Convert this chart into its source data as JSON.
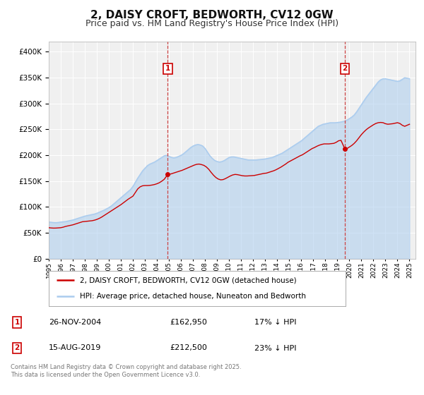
{
  "title": "2, DAISY CROFT, BEDWORTH, CV12 0GW",
  "subtitle": "Price paid vs. HM Land Registry's House Price Index (HPI)",
  "title_fontsize": 11,
  "subtitle_fontsize": 9,
  "bg_color": "#ffffff",
  "plot_bg_color": "#f0f0f0",
  "grid_color": "#ffffff",
  "hpi_color": "#aaccee",
  "price_color": "#cc0000",
  "vline_color": "#cc4444",
  "annotation_box_color": "#cc0000",
  "ylim": [
    0,
    420000
  ],
  "ytick_step": 50000,
  "legend_label_price": "2, DAISY CROFT, BEDWORTH, CV12 0GW (detached house)",
  "legend_label_hpi": "HPI: Average price, detached house, Nuneaton and Bedworth",
  "annotation1_date": "26-NOV-2004",
  "annotation1_price": "£162,950",
  "annotation1_pct": "17% ↓ HPI",
  "annotation2_date": "15-AUG-2019",
  "annotation2_price": "£212,500",
  "annotation2_pct": "23% ↓ HPI",
  "vline1_x": 2004.9,
  "vline2_x": 2019.62,
  "marker1_y": 162950,
  "marker2_y": 212500,
  "footnote": "Contains HM Land Registry data © Crown copyright and database right 2025.\nThis data is licensed under the Open Government Licence v3.0.",
  "hpi_data": [
    [
      1995.0,
      71000
    ],
    [
      1995.2,
      70500
    ],
    [
      1995.4,
      70000
    ],
    [
      1995.6,
      69800
    ],
    [
      1995.8,
      70200
    ],
    [
      1996.0,
      71000
    ],
    [
      1996.2,
      71500
    ],
    [
      1996.4,
      72000
    ],
    [
      1996.6,
      73000
    ],
    [
      1996.8,
      74000
    ],
    [
      1997.0,
      75000
    ],
    [
      1997.2,
      76500
    ],
    [
      1997.4,
      78000
    ],
    [
      1997.6,
      79500
    ],
    [
      1997.8,
      81000
    ],
    [
      1998.0,
      82500
    ],
    [
      1998.2,
      83500
    ],
    [
      1998.4,
      84500
    ],
    [
      1998.6,
      85500
    ],
    [
      1998.8,
      86500
    ],
    [
      1999.0,
      88000
    ],
    [
      1999.2,
      90000
    ],
    [
      1999.4,
      92000
    ],
    [
      1999.6,
      94000
    ],
    [
      1999.8,
      96500
    ],
    [
      2000.0,
      99000
    ],
    [
      2000.2,
      102000
    ],
    [
      2000.4,
      106000
    ],
    [
      2000.6,
      110000
    ],
    [
      2000.8,
      114000
    ],
    [
      2001.0,
      118000
    ],
    [
      2001.2,
      122000
    ],
    [
      2001.4,
      126000
    ],
    [
      2001.6,
      130000
    ],
    [
      2001.8,
      134000
    ],
    [
      2002.0,
      140000
    ],
    [
      2002.2,
      148000
    ],
    [
      2002.4,
      156000
    ],
    [
      2002.6,
      163000
    ],
    [
      2002.8,
      170000
    ],
    [
      2003.0,
      175000
    ],
    [
      2003.2,
      180000
    ],
    [
      2003.4,
      183000
    ],
    [
      2003.6,
      185000
    ],
    [
      2003.8,
      187000
    ],
    [
      2004.0,
      190000
    ],
    [
      2004.2,
      193000
    ],
    [
      2004.4,
      196000
    ],
    [
      2004.6,
      199000
    ],
    [
      2004.8,
      200000
    ],
    [
      2005.0,
      198000
    ],
    [
      2005.2,
      196000
    ],
    [
      2005.4,
      195000
    ],
    [
      2005.6,
      196000
    ],
    [
      2005.8,
      198000
    ],
    [
      2006.0,
      200000
    ],
    [
      2006.2,
      203000
    ],
    [
      2006.4,
      207000
    ],
    [
      2006.6,
      211000
    ],
    [
      2006.8,
      215000
    ],
    [
      2007.0,
      218000
    ],
    [
      2007.2,
      220000
    ],
    [
      2007.4,
      221000
    ],
    [
      2007.6,
      220000
    ],
    [
      2007.8,
      218000
    ],
    [
      2008.0,
      213000
    ],
    [
      2008.2,
      206000
    ],
    [
      2008.4,
      199000
    ],
    [
      2008.6,
      194000
    ],
    [
      2008.8,
      190000
    ],
    [
      2009.0,
      188000
    ],
    [
      2009.2,
      187000
    ],
    [
      2009.4,
      188000
    ],
    [
      2009.6,
      190000
    ],
    [
      2009.8,
      193000
    ],
    [
      2010.0,
      196000
    ],
    [
      2010.2,
      197000
    ],
    [
      2010.4,
      197000
    ],
    [
      2010.6,
      196000
    ],
    [
      2010.8,
      195000
    ],
    [
      2011.0,
      194000
    ],
    [
      2011.2,
      193000
    ],
    [
      2011.4,
      192000
    ],
    [
      2011.6,
      191000
    ],
    [
      2011.8,
      191000
    ],
    [
      2012.0,
      191000
    ],
    [
      2012.2,
      191000
    ],
    [
      2012.4,
      191500
    ],
    [
      2012.6,
      192000
    ],
    [
      2012.8,
      192500
    ],
    [
      2013.0,
      193000
    ],
    [
      2013.2,
      194000
    ],
    [
      2013.4,
      195000
    ],
    [
      2013.6,
      196000
    ],
    [
      2013.8,
      198000
    ],
    [
      2014.0,
      200000
    ],
    [
      2014.2,
      202000
    ],
    [
      2014.4,
      204000
    ],
    [
      2014.6,
      207000
    ],
    [
      2014.8,
      210000
    ],
    [
      2015.0,
      213000
    ],
    [
      2015.2,
      216000
    ],
    [
      2015.4,
      219000
    ],
    [
      2015.6,
      222000
    ],
    [
      2015.8,
      225000
    ],
    [
      2016.0,
      228000
    ],
    [
      2016.2,
      232000
    ],
    [
      2016.4,
      236000
    ],
    [
      2016.6,
      240000
    ],
    [
      2016.8,
      244000
    ],
    [
      2017.0,
      248000
    ],
    [
      2017.2,
      252000
    ],
    [
      2017.4,
      256000
    ],
    [
      2017.6,
      258000
    ],
    [
      2017.8,
      260000
    ],
    [
      2018.0,
      261000
    ],
    [
      2018.2,
      262000
    ],
    [
      2018.4,
      263000
    ],
    [
      2018.6,
      263000
    ],
    [
      2018.8,
      263000
    ],
    [
      2019.0,
      263500
    ],
    [
      2019.2,
      264000
    ],
    [
      2019.4,
      265000
    ],
    [
      2019.6,
      266000
    ],
    [
      2019.8,
      268000
    ],
    [
      2020.0,
      271000
    ],
    [
      2020.2,
      274000
    ],
    [
      2020.4,
      278000
    ],
    [
      2020.6,
      284000
    ],
    [
      2020.8,
      291000
    ],
    [
      2021.0,
      298000
    ],
    [
      2021.2,
      305000
    ],
    [
      2021.4,
      312000
    ],
    [
      2021.6,
      318000
    ],
    [
      2021.8,
      324000
    ],
    [
      2022.0,
      330000
    ],
    [
      2022.2,
      336000
    ],
    [
      2022.4,
      342000
    ],
    [
      2022.6,
      346000
    ],
    [
      2022.8,
      348000
    ],
    [
      2023.0,
      348000
    ],
    [
      2023.2,
      347000
    ],
    [
      2023.4,
      346000
    ],
    [
      2023.6,
      345000
    ],
    [
      2023.8,
      344000
    ],
    [
      2024.0,
      343000
    ],
    [
      2024.2,
      344000
    ],
    [
      2024.4,
      347000
    ],
    [
      2024.6,
      350000
    ],
    [
      2024.8,
      349000
    ],
    [
      2025.0,
      348000
    ]
  ],
  "price_data": [
    [
      1995.0,
      60000
    ],
    [
      1995.2,
      59500
    ],
    [
      1995.4,
      59200
    ],
    [
      1995.6,
      59300
    ],
    [
      1995.8,
      59600
    ],
    [
      1996.0,
      60000
    ],
    [
      1996.2,
      61000
    ],
    [
      1996.4,
      62500
    ],
    [
      1996.6,
      63500
    ],
    [
      1996.8,
      64500
    ],
    [
      1997.0,
      65500
    ],
    [
      1997.2,
      67000
    ],
    [
      1997.4,
      68500
    ],
    [
      1997.6,
      70000
    ],
    [
      1997.8,
      71500
    ],
    [
      1998.0,
      72000
    ],
    [
      1998.2,
      72500
    ],
    [
      1998.4,
      73000
    ],
    [
      1998.6,
      73500
    ],
    [
      1998.8,
      74500
    ],
    [
      1999.0,
      76000
    ],
    [
      1999.2,
      78000
    ],
    [
      1999.4,
      80500
    ],
    [
      1999.6,
      83500
    ],
    [
      1999.8,
      86500
    ],
    [
      2000.0,
      89500
    ],
    [
      2000.2,
      92500
    ],
    [
      2000.4,
      95500
    ],
    [
      2000.6,
      98500
    ],
    [
      2000.8,
      101500
    ],
    [
      2001.0,
      104500
    ],
    [
      2001.2,
      108000
    ],
    [
      2001.4,
      111500
    ],
    [
      2001.6,
      115000
    ],
    [
      2001.8,
      118000
    ],
    [
      2002.0,
      121000
    ],
    [
      2002.2,
      128000
    ],
    [
      2002.4,
      135000
    ],
    [
      2002.6,
      139000
    ],
    [
      2002.8,
      141000
    ],
    [
      2003.0,
      141500
    ],
    [
      2003.2,
      141500
    ],
    [
      2003.4,
      141800
    ],
    [
      2003.6,
      142500
    ],
    [
      2003.8,
      143500
    ],
    [
      2004.0,
      145000
    ],
    [
      2004.2,
      147000
    ],
    [
      2004.4,
      150000
    ],
    [
      2004.6,
      153500
    ],
    [
      2004.9,
      162950
    ],
    [
      2005.1,
      163500
    ],
    [
      2005.3,
      165000
    ],
    [
      2005.5,
      166500
    ],
    [
      2005.7,
      168000
    ],
    [
      2005.9,
      169500
    ],
    [
      2006.1,
      171000
    ],
    [
      2006.3,
      173000
    ],
    [
      2006.5,
      175000
    ],
    [
      2006.7,
      177000
    ],
    [
      2006.9,
      179000
    ],
    [
      2007.1,
      181000
    ],
    [
      2007.3,
      182500
    ],
    [
      2007.5,
      183000
    ],
    [
      2007.7,
      182000
    ],
    [
      2007.9,
      180500
    ],
    [
      2008.1,
      177500
    ],
    [
      2008.3,
      173000
    ],
    [
      2008.5,
      167000
    ],
    [
      2008.7,
      161500
    ],
    [
      2008.9,
      157000
    ],
    [
      2009.1,
      154000
    ],
    [
      2009.3,
      152500
    ],
    [
      2009.5,
      153000
    ],
    [
      2009.7,
      155000
    ],
    [
      2009.9,
      157500
    ],
    [
      2010.1,
      160000
    ],
    [
      2010.3,
      162000
    ],
    [
      2010.5,
      163000
    ],
    [
      2010.7,
      162500
    ],
    [
      2010.9,
      161500
    ],
    [
      2011.1,
      160500
    ],
    [
      2011.3,
      160000
    ],
    [
      2011.5,
      160000
    ],
    [
      2011.7,
      160300
    ],
    [
      2011.9,
      160700
    ],
    [
      2012.1,
      161000
    ],
    [
      2012.3,
      162000
    ],
    [
      2012.5,
      163000
    ],
    [
      2012.7,
      164000
    ],
    [
      2012.9,
      165000
    ],
    [
      2013.1,
      165500
    ],
    [
      2013.3,
      167000
    ],
    [
      2013.5,
      168500
    ],
    [
      2013.7,
      170000
    ],
    [
      2013.9,
      172000
    ],
    [
      2014.1,
      174500
    ],
    [
      2014.3,
      177000
    ],
    [
      2014.5,
      180000
    ],
    [
      2014.7,
      183000
    ],
    [
      2014.9,
      186500
    ],
    [
      2015.1,
      189000
    ],
    [
      2015.3,
      191500
    ],
    [
      2015.5,
      194000
    ],
    [
      2015.7,
      196500
    ],
    [
      2015.9,
      199000
    ],
    [
      2016.1,
      201000
    ],
    [
      2016.3,
      204000
    ],
    [
      2016.5,
      207000
    ],
    [
      2016.7,
      210000
    ],
    [
      2016.9,
      213000
    ],
    [
      2017.1,
      215000
    ],
    [
      2017.3,
      217500
    ],
    [
      2017.5,
      219500
    ],
    [
      2017.7,
      221000
    ],
    [
      2017.9,
      222000
    ],
    [
      2018.1,
      222000
    ],
    [
      2018.3,
      222000
    ],
    [
      2018.5,
      222500
    ],
    [
      2018.7,
      223000
    ],
    [
      2018.9,
      225000
    ],
    [
      2019.1,
      228000
    ],
    [
      2019.3,
      229000
    ],
    [
      2019.62,
      212500
    ],
    [
      2019.8,
      213000
    ],
    [
      2020.0,
      216000
    ],
    [
      2020.2,
      219000
    ],
    [
      2020.4,
      223000
    ],
    [
      2020.6,
      228000
    ],
    [
      2020.8,
      234000
    ],
    [
      2021.0,
      240000
    ],
    [
      2021.2,
      245000
    ],
    [
      2021.4,
      249500
    ],
    [
      2021.6,
      253000
    ],
    [
      2021.8,
      256000
    ],
    [
      2022.0,
      259000
    ],
    [
      2022.2,
      261500
    ],
    [
      2022.4,
      263000
    ],
    [
      2022.6,
      263500
    ],
    [
      2022.8,
      263000
    ],
    [
      2023.0,
      261000
    ],
    [
      2023.2,
      260000
    ],
    [
      2023.4,
      260500
    ],
    [
      2023.6,
      261000
    ],
    [
      2023.8,
      262000
    ],
    [
      2024.0,
      263000
    ],
    [
      2024.2,
      261500
    ],
    [
      2024.4,
      258000
    ],
    [
      2024.6,
      256000
    ],
    [
      2024.8,
      258000
    ],
    [
      2025.0,
      260000
    ]
  ],
  "xtick_years": [
    1995,
    1996,
    1997,
    1998,
    1999,
    2000,
    2001,
    2002,
    2003,
    2004,
    2005,
    2006,
    2007,
    2008,
    2009,
    2010,
    2011,
    2012,
    2013,
    2014,
    2015,
    2016,
    2017,
    2018,
    2019,
    2020,
    2021,
    2022,
    2023,
    2024,
    2025
  ]
}
